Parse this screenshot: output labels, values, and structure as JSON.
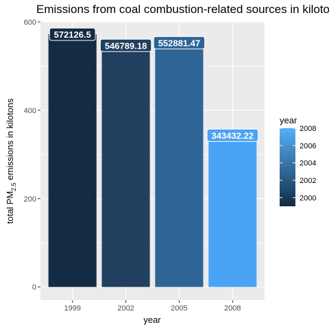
{
  "chart_data": {
    "type": "bar",
    "title": "Emissions from coal combustion-related sources in kilotons",
    "xlabel": "year",
    "ylabel_main": "total PM",
    "ylabel_sub": "2.5",
    "ylabel_rest": " emissions in kilotons",
    "categories": [
      "1999",
      "2002",
      "2005",
      "2008"
    ],
    "values": [
      572126.5,
      546789.18,
      552881.47,
      343432.22
    ],
    "data_labels": [
      "572126.5",
      "546789.18",
      "552881.47",
      "343432.22"
    ],
    "yticks": [
      0,
      200,
      400,
      600
    ],
    "ytick_labels": [
      "0",
      "200",
      "400",
      "600"
    ],
    "ylim": [
      -30000,
      600000
    ],
    "grid": true,
    "panel_background": "#ebebeb",
    "bar_colors": [
      "#132b43",
      "#213f5e",
      "#2f6496",
      "#4aa3f4"
    ],
    "legend": {
      "title": "year",
      "position": "right",
      "tick_labels": [
        "2008",
        "2006",
        "2004",
        "2002",
        "2000"
      ],
      "tick_values": [
        2008,
        2006,
        2004,
        2002,
        2000
      ],
      "range": [
        1999,
        2008
      ],
      "color_low": "#132b43",
      "color_high": "#56b1f7"
    }
  }
}
